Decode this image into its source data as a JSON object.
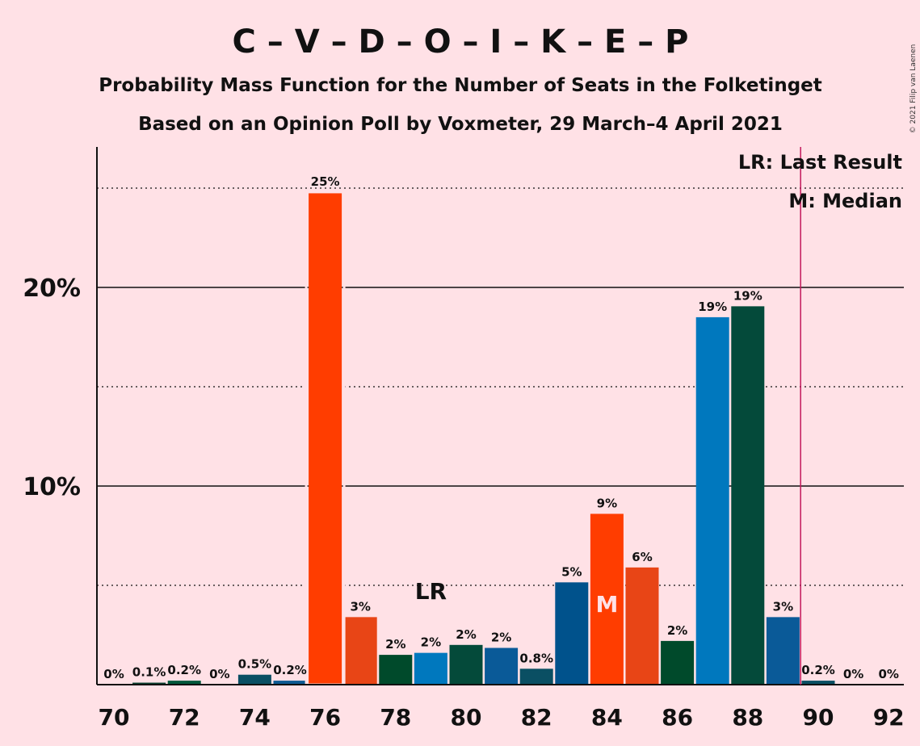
{
  "title": "C – V – D – O – I – K – E – P",
  "subtitle": "Probability Mass Function for the Number of Seats in the Folketinget",
  "subtitle2": "Based on an Opinion Poll by Voxmeter, 29 March–4 April 2021",
  "copyright": "© 2021 Filip van Laenen",
  "legend": {
    "lr": "LR: Last Result",
    "m": "M: Median"
  },
  "markers": {
    "lr_label": "LR",
    "lr_seat": 79,
    "median_label": "M",
    "median_seat": 84,
    "last_result_line_seat": 89.5
  },
  "chart_data": {
    "type": "bar",
    "xlabel": "",
    "ylabel": "",
    "ylim": [
      0,
      27
    ],
    "yticks": [
      {
        "value": 10,
        "label": "10%"
      },
      {
        "value": 20,
        "label": "20%"
      }
    ],
    "ygrid_dotted": [
      5,
      15,
      25
    ],
    "xticks": [
      "70",
      "72",
      "74",
      "76",
      "78",
      "80",
      "82",
      "84",
      "86",
      "88",
      "90",
      "92"
    ],
    "bars": [
      {
        "seat": 70,
        "value": 0,
        "label": "0%",
        "color": "#0A4030"
      },
      {
        "seat": 71,
        "value": 0.1,
        "label": "0.1%",
        "color": "#0A4030"
      },
      {
        "seat": 72,
        "value": 0.2,
        "label": "0.2%",
        "color": "#00583C"
      },
      {
        "seat": 73,
        "value": 0,
        "label": "0%",
        "color": "#0A4030"
      },
      {
        "seat": 74,
        "value": 0.5,
        "label": "0.5%",
        "color": "#0A4F63"
      },
      {
        "seat": 75,
        "value": 0.2,
        "label": "0.2%",
        "color": "#0E5A93"
      },
      {
        "seat": 76,
        "value": 24.8,
        "label": "25%",
        "color": "#FF3D00"
      },
      {
        "seat": 77,
        "value": 3.4,
        "label": "3%",
        "color": "#E84516"
      },
      {
        "seat": 78,
        "value": 1.5,
        "label": "2%",
        "color": "#004A2B"
      },
      {
        "seat": 79,
        "value": 1.6,
        "label": "2%",
        "color": "#0078BE"
      },
      {
        "seat": 80,
        "value": 2.0,
        "label": "2%",
        "color": "#044A3A"
      },
      {
        "seat": 81,
        "value": 1.85,
        "label": "2%",
        "color": "#0A5A98"
      },
      {
        "seat": 82,
        "value": 0.8,
        "label": "0.8%",
        "color": "#0A4F63"
      },
      {
        "seat": 83,
        "value": 5.15,
        "label": "5%",
        "color": "#00528C"
      },
      {
        "seat": 84,
        "value": 8.6,
        "label": "9%",
        "color": "#FF3D00"
      },
      {
        "seat": 85,
        "value": 5.9,
        "label": "6%",
        "color": "#E84516"
      },
      {
        "seat": 86,
        "value": 2.2,
        "label": "2%",
        "color": "#004A2B"
      },
      {
        "seat": 87,
        "value": 18.5,
        "label": "19%",
        "color": "#0078BE"
      },
      {
        "seat": 88,
        "value": 19.05,
        "label": "19%",
        "color": "#044A3A"
      },
      {
        "seat": 89,
        "value": 3.4,
        "label": "3%",
        "color": "#0A5A98"
      },
      {
        "seat": 90,
        "value": 0.2,
        "label": "0.2%",
        "color": "#0A4F63"
      },
      {
        "seat": 91,
        "value": 0,
        "label": "0%",
        "color": "#0A4F63"
      },
      {
        "seat": 92,
        "value": 0,
        "label": "0%",
        "color": "#0A4F63"
      }
    ],
    "colors": {
      "background": "#FFE1E6",
      "last_result_line": "#C2185B"
    }
  }
}
